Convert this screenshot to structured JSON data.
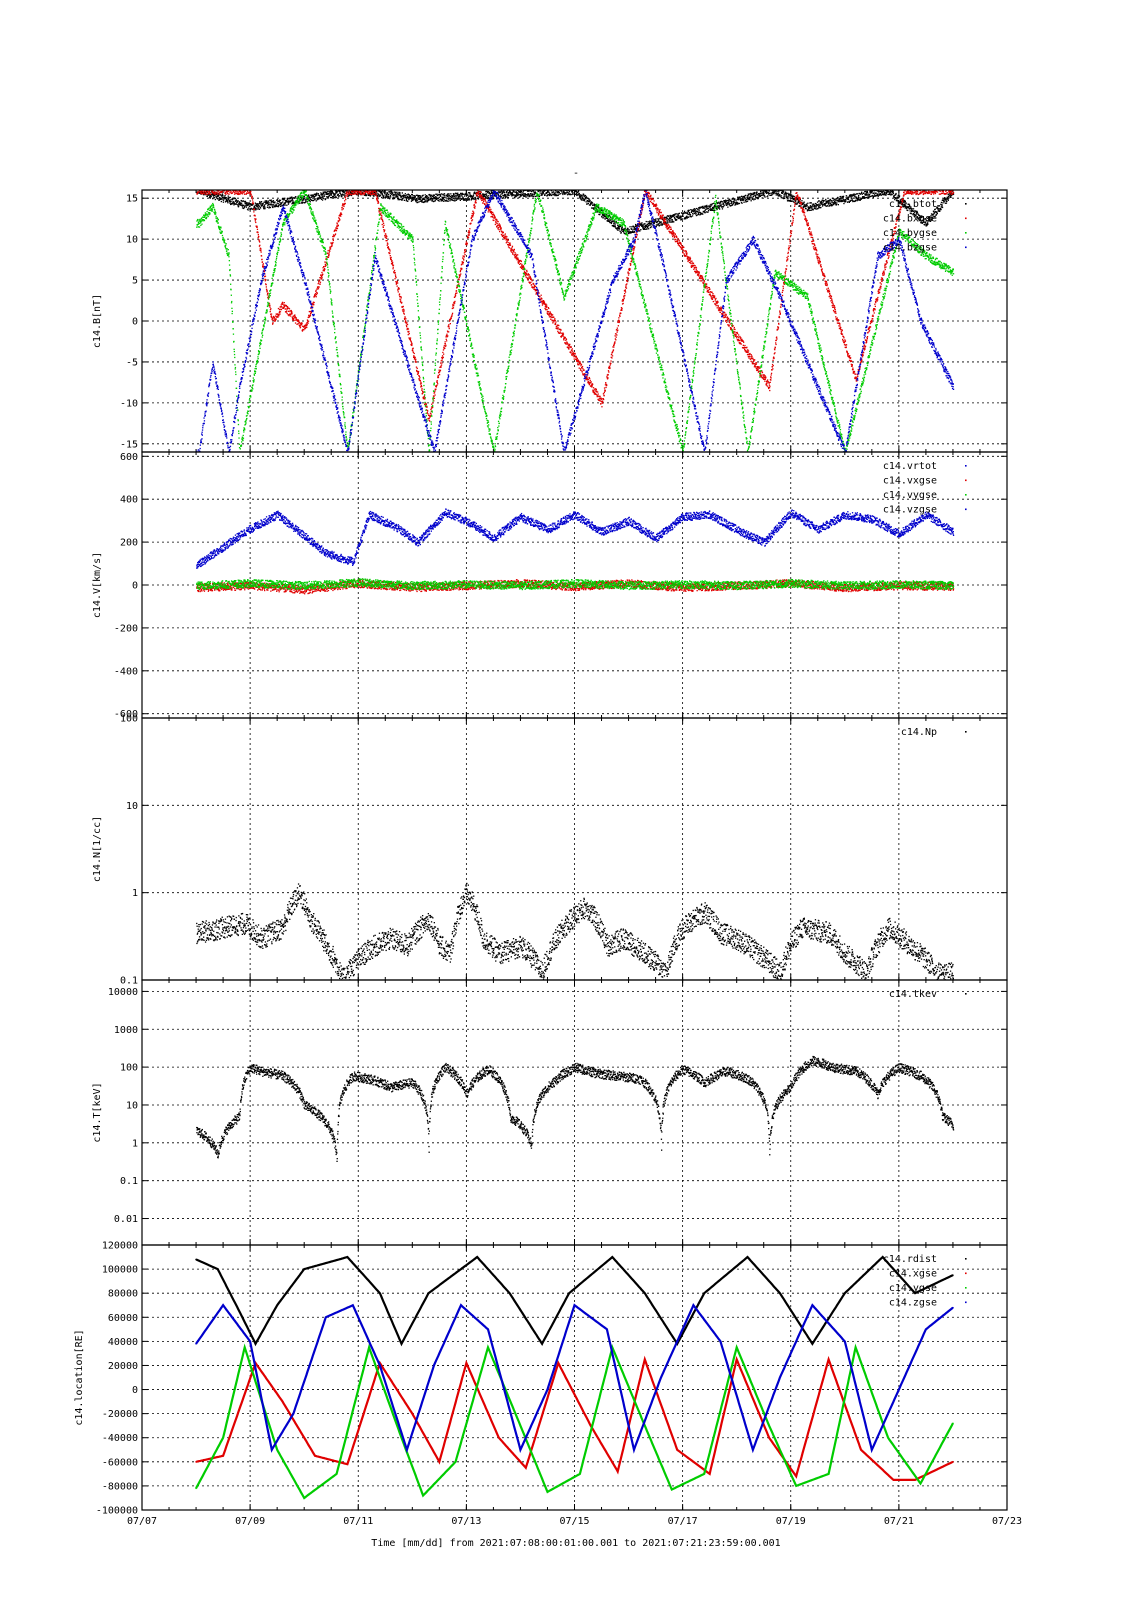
{
  "figure": {
    "title": "-",
    "xlabel": "Time [mm/dd]  from 2021:07:08:00:01:00.001  to  2021:07:21:23:59:00.001",
    "x_ticks": [
      "07/07",
      "07/09",
      "07/11",
      "07/13",
      "07/15",
      "07/17",
      "07/19",
      "07/21",
      "07/23"
    ],
    "x_range_days": [
      0,
      16
    ],
    "data_span_days": [
      1.0,
      15.0
    ]
  },
  "colors": {
    "black": "#000000",
    "red": "#e00000",
    "green": "#00cc00",
    "blue": "#0000cc"
  },
  "chart_data": [
    {
      "type": "scatter",
      "ylabel": "c14.B[nT]",
      "ylim": [
        -16,
        16
      ],
      "y_ticks": [
        15,
        10,
        5,
        0,
        -5,
        -10,
        -15
      ],
      "y_scale": "linear",
      "grid": true,
      "legend_position": "top-right",
      "series": [
        {
          "name": "c14.btot",
          "color": "#000000",
          "x": [
            1.05,
            2.0,
            4.0,
            5.1,
            8.0,
            8.9,
            11.7,
            12.3,
            13.8,
            14.5,
            15.0
          ],
          "y": [
            16,
            14,
            16,
            15,
            16,
            11,
            16,
            14,
            16,
            12,
            16
          ]
        },
        {
          "name": "c14.bxgse",
          "color": "#e00000",
          "x": [
            1.05,
            2.0,
            2.4,
            2.6,
            3.0,
            3.8,
            4.3,
            5.3,
            6.2,
            8.5,
            9.3,
            11.6,
            12.1,
            13.2,
            14.1,
            15.0
          ],
          "y": [
            16,
            16,
            0,
            2,
            -1,
            16,
            16,
            -12,
            16,
            -10,
            16,
            -8,
            16,
            -7,
            16,
            16
          ]
        },
        {
          "name": "c14.bygse",
          "color": "#00cc00",
          "x": [
            1.05,
            1.3,
            1.6,
            1.8,
            2.6,
            3.0,
            3.4,
            3.8,
            4.4,
            5.0,
            5.3,
            5.6,
            6.5,
            7.3,
            7.8,
            8.4,
            8.9,
            10.0,
            10.6,
            11.2,
            11.7,
            12.3,
            13.0,
            14.0,
            14.5,
            15.0
          ],
          "y": [
            12,
            14,
            8,
            -16,
            12,
            16,
            8,
            -16,
            14,
            10,
            -16,
            12,
            -16,
            16,
            3,
            14,
            12,
            -16,
            15,
            -16,
            6,
            3,
            -16,
            11,
            8,
            6
          ]
        },
        {
          "name": "c14.bzgse",
          "color": "#0000cc",
          "x": [
            1.05,
            1.3,
            1.6,
            1.8,
            2.2,
            2.6,
            3.0,
            3.8,
            4.3,
            4.9,
            5.4,
            6.1,
            6.5,
            7.2,
            7.8,
            8.7,
            9.1,
            9.3,
            9.6,
            10.4,
            10.8,
            11.3,
            11.8,
            12.3,
            13.0,
            13.6,
            14.0,
            14.4,
            15.0
          ],
          "y": [
            -16,
            -5,
            -16,
            -8,
            5,
            14,
            5,
            -16,
            8,
            -5,
            -16,
            10,
            16,
            8,
            -16,
            5,
            10,
            16,
            8,
            -16,
            5,
            10,
            3,
            -5,
            -16,
            8,
            10,
            0,
            -8
          ]
        }
      ]
    },
    {
      "type": "scatter",
      "ylabel": "c14.V[km/s]",
      "ylim": [
        -620,
        620
      ],
      "y_ticks": [
        600,
        400,
        200,
        0,
        -200,
        -400,
        -600
      ],
      "y_scale": "linear",
      "grid": true,
      "legend_position": "top-right",
      "series": [
        {
          "name": "c14.vrtot",
          "color": "#0000cc",
          "x": [
            1.05,
            1.5,
            1.9,
            2.5,
            3.0,
            3.4,
            3.9,
            4.2,
            4.7,
            5.1,
            5.6,
            6.0,
            6.5,
            7.0,
            7.5,
            8.0,
            8.5,
            9.0,
            9.5,
            10.0,
            10.5,
            11.0,
            11.5,
            12.0,
            12.5,
            13.0,
            13.5,
            14.0,
            14.5,
            15.0
          ],
          "y": [
            100,
            180,
            250,
            330,
            230,
            150,
            110,
            330,
            270,
            200,
            340,
            300,
            220,
            320,
            260,
            330,
            250,
            300,
            220,
            320,
            330,
            260,
            200,
            340,
            260,
            330,
            310,
            240,
            330,
            250
          ]
        },
        {
          "name": "c14.vxgse",
          "color": "#e00000",
          "x": [
            1.05,
            2.0,
            3.0,
            4.0,
            5.0,
            6.0,
            7.0,
            8.0,
            9.0,
            10.0,
            11.0,
            12.0,
            13.0,
            14.0,
            15.0
          ],
          "y": [
            -10,
            0,
            -20,
            10,
            -10,
            0,
            10,
            -5,
            10,
            -10,
            0,
            10,
            -10,
            0,
            -5
          ]
        },
        {
          "name": "c14.vygse",
          "color": "#00cc00",
          "x": [
            1.05,
            2.0,
            3.0,
            4.0,
            5.0,
            6.0,
            7.0,
            8.0,
            9.0,
            10.0,
            11.0,
            12.0,
            13.0,
            14.0,
            15.0
          ],
          "y": [
            0,
            10,
            0,
            15,
            0,
            5,
            0,
            10,
            0,
            5,
            0,
            10,
            0,
            5,
            0
          ]
        },
        {
          "name": "c14.vzgse",
          "color": "#0000cc",
          "x": [],
          "y": []
        }
      ]
    },
    {
      "type": "scatter",
      "ylabel": "c14.N[1/cc]",
      "ylim": [
        0.1,
        100
      ],
      "y_ticks": [
        100,
        10,
        1,
        0.1
      ],
      "y_scale": "log",
      "grid": true,
      "legend_position": "top-right",
      "series": [
        {
          "name": "c14.Np",
          "color": "#000000",
          "x": [
            1.05,
            1.9,
            2.2,
            2.6,
            2.9,
            3.1,
            3.4,
            3.7,
            4.3,
            4.6,
            4.9,
            5.3,
            5.5,
            5.7,
            6.0,
            6.3,
            6.6,
            7.0,
            7.4,
            7.8,
            8.2,
            8.6,
            8.9,
            9.3,
            9.7,
            10.0,
            10.4,
            10.7,
            11.0,
            11.4,
            11.8,
            12.2,
            12.7,
            13.0,
            13.4,
            13.8,
            14.2,
            14.7
          ],
          "y": [
            0.35,
            0.45,
            0.3,
            0.4,
            1.0,
            0.5,
            0.25,
            0.1,
            0.25,
            0.3,
            0.25,
            0.5,
            0.25,
            0.2,
            1.0,
            0.3,
            0.2,
            0.25,
            0.12,
            0.4,
            0.7,
            0.25,
            0.3,
            0.2,
            0.12,
            0.4,
            0.6,
            0.35,
            0.3,
            0.2,
            0.12,
            0.4,
            0.35,
            0.2,
            0.12,
            0.4,
            0.25,
            0.12
          ]
        }
      ]
    },
    {
      "type": "scatter",
      "ylabel": "c14.T[keV]",
      "ylim": [
        0.002,
        20000
      ],
      "y_ticks": [
        10000,
        1000,
        100,
        10,
        1,
        0.1,
        0.01
      ],
      "y_scale": "log",
      "grid": true,
      "legend_position": "top-right",
      "series": [
        {
          "name": "c14.tkev",
          "color": "#000000",
          "x": [
            1.05,
            1.4,
            1.8,
            2.0,
            2.2,
            2.6,
            3.0,
            3.3,
            3.6,
            3.9,
            4.2,
            4.6,
            5.0,
            5.3,
            5.6,
            6.0,
            6.4,
            6.8,
            7.2,
            7.6,
            8.0,
            8.4,
            8.8,
            9.2,
            9.6,
            10.0,
            10.4,
            10.8,
            11.2,
            11.6,
            12.0,
            12.4,
            12.8,
            13.2,
            13.6,
            14.0,
            14.4,
            14.8,
            15.0
          ],
          "y": [
            2,
            0.5,
            5,
            100,
            80,
            60,
            10,
            5,
            0.3,
            60,
            50,
            30,
            40,
            0.5,
            100,
            20,
            90,
            5,
            0.8,
            40,
            100,
            70,
            60,
            50,
            0.8,
            90,
            40,
            80,
            50,
            0.6,
            30,
            150,
            100,
            80,
            20,
            100,
            60,
            5,
            3
          ]
        }
      ]
    },
    {
      "type": "line",
      "ylabel": "c14.location[RE]",
      "ylim": [
        -100000,
        120000
      ],
      "y_ticks": [
        100000,
        80000,
        60000,
        40000,
        20000,
        0,
        -20000,
        -40000,
        -60000,
        -80000,
        -100000
      ],
      "y_top_label": "120000",
      "y_scale": "linear",
      "grid": true,
      "legend_position": "top-right",
      "series": [
        {
          "name": "c14.rdist",
          "color": "#000000",
          "x": [
            1.0,
            1.4,
            1.8,
            2.1,
            2.5,
            3.0,
            3.8,
            4.4,
            4.8,
            5.3,
            6.2,
            6.8,
            7.4,
            7.9,
            8.7,
            9.3,
            9.9,
            10.4,
            11.2,
            11.8,
            12.4,
            13.0,
            13.7,
            14.3,
            15.0
          ],
          "y": [
            108000,
            100000,
            65000,
            38000,
            70000,
            100000,
            110000,
            80000,
            38000,
            80000,
            110000,
            80000,
            38000,
            80000,
            110000,
            80000,
            38000,
            80000,
            110000,
            80000,
            38000,
            80000,
            110000,
            80000,
            95000
          ]
        },
        {
          "name": "c14.xgse",
          "color": "#e00000",
          "x": [
            1.0,
            1.5,
            2.1,
            2.6,
            3.2,
            3.8,
            4.4,
            5.0,
            5.5,
            6.0,
            6.6,
            7.1,
            7.7,
            8.3,
            8.8,
            9.3,
            9.9,
            10.5,
            11.0,
            11.6,
            12.1,
            12.7,
            13.3,
            13.9,
            14.3,
            15.0
          ],
          "y": [
            -60000,
            -55000,
            22000,
            -10000,
            -55000,
            -62000,
            22000,
            -20000,
            -60000,
            22000,
            -40000,
            -65000,
            22000,
            -30000,
            -68000,
            25000,
            -50000,
            -70000,
            25000,
            -40000,
            -72000,
            25000,
            -50000,
            -75000,
            -75000,
            -60000
          ]
        },
        {
          "name": "c14.ygse",
          "color": "#00cc00",
          "x": [
            1.0,
            1.5,
            1.9,
            2.5,
            3.0,
            3.6,
            4.2,
            4.8,
            5.2,
            5.8,
            6.4,
            7.0,
            7.5,
            8.1,
            8.7,
            9.3,
            9.8,
            10.4,
            11.0,
            11.6,
            12.1,
            12.7,
            13.2,
            13.8,
            14.4,
            15.0
          ],
          "y": [
            -82000,
            -40000,
            35000,
            -50000,
            -90000,
            -70000,
            35000,
            -40000,
            -88000,
            -60000,
            35000,
            -30000,
            -85000,
            -70000,
            35000,
            -30000,
            -83000,
            -70000,
            35000,
            -30000,
            -80000,
            -70000,
            35000,
            -40000,
            -78000,
            -28000
          ]
        },
        {
          "name": "c14.zgse",
          "color": "#0000cc",
          "x": [
            1.0,
            1.5,
            2.0,
            2.4,
            2.8,
            3.4,
            3.9,
            4.4,
            4.9,
            5.4,
            5.9,
            6.4,
            7.0,
            7.5,
            8.0,
            8.6,
            9.1,
            9.6,
            10.2,
            10.7,
            11.3,
            11.8,
            12.4,
            13.0,
            13.5,
            14.0,
            14.5,
            15.0
          ],
          "y": [
            38000,
            70000,
            40000,
            -50000,
            -20000,
            60000,
            70000,
            20000,
            -50000,
            20000,
            70000,
            50000,
            -50000,
            0,
            70000,
            50000,
            -50000,
            10000,
            70000,
            40000,
            -50000,
            10000,
            70000,
            40000,
            -50000,
            0,
            50000,
            68000
          ]
        }
      ]
    }
  ]
}
